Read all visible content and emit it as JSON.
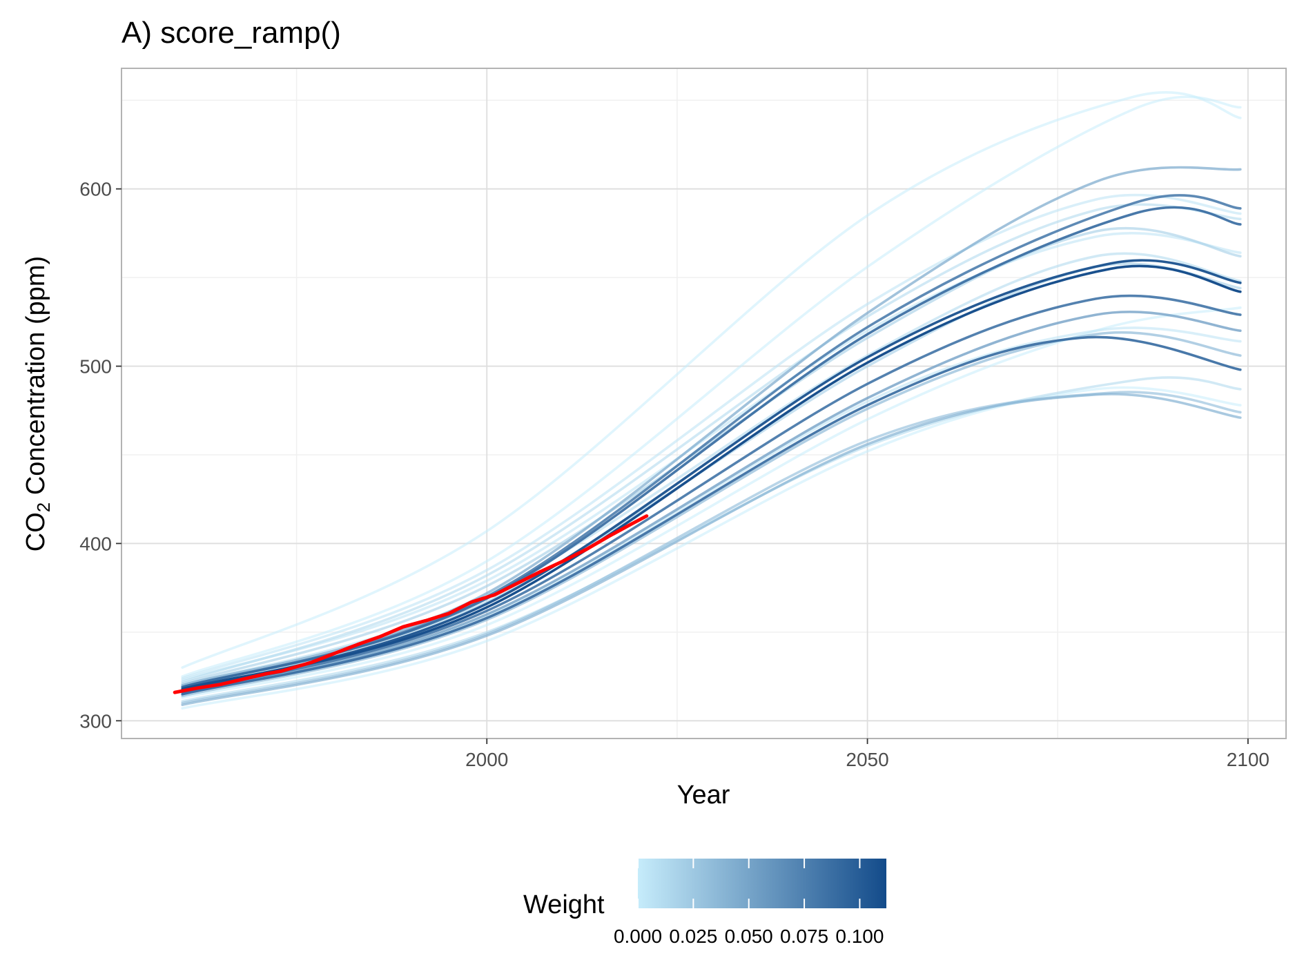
{
  "chart_data": {
    "type": "line",
    "title": "A) score_ramp()",
    "xlabel": "Year",
    "ylabel_main": "CO",
    "ylabel_sub": "2",
    "ylabel_rest": " Concentration (ppm)",
    "xlim": [
      1952,
      2105
    ],
    "ylim": [
      290,
      668
    ],
    "x_ticks": [
      2000,
      2050,
      2100
    ],
    "y_ticks": [
      300,
      400,
      500,
      600
    ],
    "grid": true,
    "legend": {
      "title": "Weight",
      "placement": "bottom",
      "type": "colorbar",
      "color_low": "#c6ecfb",
      "color_high": "#134b8a",
      "ticks": [
        0.0,
        0.025,
        0.05,
        0.075,
        0.1
      ],
      "tick_labels": [
        "0.000",
        "0.025",
        "0.050",
        "0.075",
        "0.100"
      ],
      "range": [
        0.0,
        0.112
      ]
    },
    "observed": {
      "color": "#ff0000",
      "x": [
        1959,
        1962,
        1965,
        1968,
        1971,
        1973,
        1975,
        1977,
        1980,
        1983,
        1986,
        1989,
        1992,
        1995,
        1998,
        2001,
        2004,
        2007,
        2010,
        2013,
        2016,
        2019,
        2021
      ],
      "y": [
        316,
        318.5,
        320.5,
        323.5,
        326.5,
        328,
        330.5,
        333,
        338,
        343,
        347.5,
        353,
        356.5,
        360.5,
        367,
        371,
        377.5,
        384,
        390,
        396.5,
        404,
        411,
        415.5
      ]
    },
    "series": [
      {
        "weight": 0.0,
        "values": [
          {
            "x": 1960,
            "y": 330
          },
          {
            "x": 2000,
            "y": 407
          },
          {
            "x": 2050,
            "y": 585
          },
          {
            "x": 2085,
            "y": 652
          },
          {
            "x": 2099,
            "y": 640
          }
        ]
      },
      {
        "weight": 0.0,
        "values": [
          {
            "x": 1960,
            "y": 325
          },
          {
            "x": 2000,
            "y": 390
          },
          {
            "x": 2050,
            "y": 556
          },
          {
            "x": 2085,
            "y": 645
          },
          {
            "x": 2099,
            "y": 646
          }
        ]
      },
      {
        "weight": 0.006,
        "values": [
          {
            "x": 1960,
            "y": 324
          },
          {
            "x": 2000,
            "y": 385
          },
          {
            "x": 2050,
            "y": 535
          },
          {
            "x": 2080,
            "y": 594
          },
          {
            "x": 2099,
            "y": 586
          }
        ]
      },
      {
        "weight": 0.012,
        "values": [
          {
            "x": 1960,
            "y": 322
          },
          {
            "x": 2000,
            "y": 382
          },
          {
            "x": 2050,
            "y": 528
          },
          {
            "x": 2080,
            "y": 588
          },
          {
            "x": 2099,
            "y": 583
          }
        ]
      },
      {
        "weight": 0.006,
        "values": [
          {
            "x": 1960,
            "y": 323
          },
          {
            "x": 2000,
            "y": 379
          },
          {
            "x": 2050,
            "y": 520
          },
          {
            "x": 2080,
            "y": 573
          },
          {
            "x": 2099,
            "y": 564
          }
        ]
      },
      {
        "weight": 0.02,
        "values": [
          {
            "x": 1960,
            "y": 321
          },
          {
            "x": 2000,
            "y": 376
          },
          {
            "x": 2050,
            "y": 516
          },
          {
            "x": 2080,
            "y": 576
          },
          {
            "x": 2099,
            "y": 562
          }
        ]
      },
      {
        "weight": 0.045,
        "values": [
          {
            "x": 1960,
            "y": 320
          },
          {
            "x": 2000,
            "y": 372
          },
          {
            "x": 2050,
            "y": 530
          },
          {
            "x": 2080,
            "y": 604
          },
          {
            "x": 2099,
            "y": 611
          }
        ]
      },
      {
        "weight": 0.08,
        "values": [
          {
            "x": 1960,
            "y": 319
          },
          {
            "x": 2000,
            "y": 370
          },
          {
            "x": 2050,
            "y": 522
          },
          {
            "x": 2085,
            "y": 592
          },
          {
            "x": 2099,
            "y": 589
          }
        ]
      },
      {
        "weight": 0.09,
        "values": [
          {
            "x": 1960,
            "y": 319
          },
          {
            "x": 2000,
            "y": 369
          },
          {
            "x": 2050,
            "y": 518
          },
          {
            "x": 2085,
            "y": 586
          },
          {
            "x": 2099,
            "y": 580
          }
        ]
      },
      {
        "weight": 0.012,
        "values": [
          {
            "x": 1960,
            "y": 320
          },
          {
            "x": 2000,
            "y": 371
          },
          {
            "x": 2050,
            "y": 506
          },
          {
            "x": 2080,
            "y": 562
          },
          {
            "x": 2099,
            "y": 548
          }
        ]
      },
      {
        "weight": 0.02,
        "values": [
          {
            "x": 1960,
            "y": 318
          },
          {
            "x": 2000,
            "y": 367
          },
          {
            "x": 2050,
            "y": 500
          },
          {
            "x": 2080,
            "y": 556
          },
          {
            "x": 2099,
            "y": 544
          }
        ]
      },
      {
        "weight": 0.105,
        "values": [
          {
            "x": 1960,
            "y": 317
          },
          {
            "x": 2000,
            "y": 366
          },
          {
            "x": 2050,
            "y": 505
          },
          {
            "x": 2082,
            "y": 558
          },
          {
            "x": 2099,
            "y": 547
          }
        ]
      },
      {
        "weight": 0.11,
        "values": [
          {
            "x": 1960,
            "y": 318
          },
          {
            "x": 2000,
            "y": 364
          },
          {
            "x": 2050,
            "y": 502
          },
          {
            "x": 2082,
            "y": 555
          },
          {
            "x": 2099,
            "y": 542
          }
        ]
      },
      {
        "weight": 0.085,
        "values": [
          {
            "x": 1960,
            "y": 316
          },
          {
            "x": 2000,
            "y": 362
          },
          {
            "x": 2050,
            "y": 490
          },
          {
            "x": 2080,
            "y": 538
          },
          {
            "x": 2099,
            "y": 529
          }
        ]
      },
      {
        "weight": 0.055,
        "values": [
          {
            "x": 1960,
            "y": 315
          },
          {
            "x": 2000,
            "y": 360
          },
          {
            "x": 2050,
            "y": 482
          },
          {
            "x": 2080,
            "y": 529
          },
          {
            "x": 2099,
            "y": 520
          }
        ]
      },
      {
        "weight": 0.09,
        "values": [
          {
            "x": 1960,
            "y": 315
          },
          {
            "x": 2000,
            "y": 358
          },
          {
            "x": 2050,
            "y": 478
          },
          {
            "x": 2078,
            "y": 516
          },
          {
            "x": 2099,
            "y": 498
          }
        ]
      },
      {
        "weight": 0.035,
        "values": [
          {
            "x": 1960,
            "y": 314
          },
          {
            "x": 2000,
            "y": 357
          },
          {
            "x": 2050,
            "y": 476
          },
          {
            "x": 2080,
            "y": 518
          },
          {
            "x": 2099,
            "y": 506
          }
        ]
      },
      {
        "weight": 0.006,
        "values": [
          {
            "x": 1960,
            "y": 315
          },
          {
            "x": 2000,
            "y": 359
          },
          {
            "x": 2050,
            "y": 480
          },
          {
            "x": 2080,
            "y": 520
          },
          {
            "x": 2099,
            "y": 514
          }
        ]
      },
      {
        "weight": 0.0,
        "values": [
          {
            "x": 1960,
            "y": 313
          },
          {
            "x": 2000,
            "y": 354
          },
          {
            "x": 2050,
            "y": 470
          },
          {
            "x": 2080,
            "y": 520
          },
          {
            "x": 2099,
            "y": 533
          }
        ]
      },
      {
        "weight": 0.012,
        "values": [
          {
            "x": 1960,
            "y": 311
          },
          {
            "x": 2000,
            "y": 350
          },
          {
            "x": 2050,
            "y": 455
          },
          {
            "x": 2085,
            "y": 492
          },
          {
            "x": 2099,
            "y": 487
          }
        ]
      },
      {
        "weight": 0.03,
        "values": [
          {
            "x": 1960,
            "y": 310
          },
          {
            "x": 2000,
            "y": 349
          },
          {
            "x": 2050,
            "y": 458
          },
          {
            "x": 2082,
            "y": 485
          },
          {
            "x": 2099,
            "y": 474
          }
        ]
      },
      {
        "weight": 0.04,
        "values": [
          {
            "x": 1960,
            "y": 309
          },
          {
            "x": 2000,
            "y": 348
          },
          {
            "x": 2050,
            "y": 456
          },
          {
            "x": 2080,
            "y": 484
          },
          {
            "x": 2099,
            "y": 471
          }
        ]
      },
      {
        "weight": 0.0,
        "values": [
          {
            "x": 1960,
            "y": 307
          },
          {
            "x": 2000,
            "y": 345
          },
          {
            "x": 2050,
            "y": 452
          },
          {
            "x": 2080,
            "y": 487
          },
          {
            "x": 2099,
            "y": 478
          }
        ]
      }
    ]
  }
}
